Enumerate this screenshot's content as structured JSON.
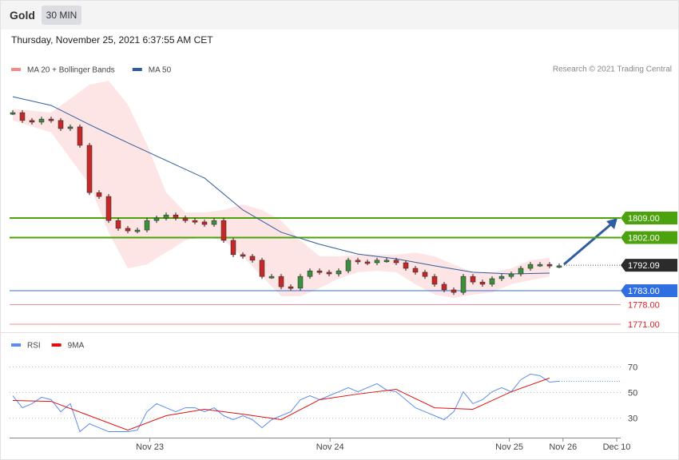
{
  "header": {
    "title": "Gold",
    "interval": "30 MIN",
    "timestamp": "Thursday, November 25, 2021 6:37:55 AM CET"
  },
  "credit": "Research © 2021 Trading Central",
  "chart_data": [
    {
      "type": "candlestick",
      "up_color": "#3c8f3c",
      "down_color": "#c62828",
      "closes": [
        1846.7,
        1843.9,
        1843.3,
        1844.4,
        1843.9,
        1841,
        1841.6,
        1835,
        1818.1,
        1816.7,
        1808.1,
        1805.3,
        1804.4,
        1804.7,
        1808.1,
        1809,
        1810.1,
        1809,
        1808.1,
        1807.6,
        1806.7,
        1808.1,
        1801,
        1795.9,
        1795.3,
        1793.9,
        1788.1,
        1788.1,
        1784.4,
        1783.9,
        1788.1,
        1790.1,
        1789.6,
        1789,
        1790.1,
        1793.9,
        1793.3,
        1793,
        1793.9,
        1793.9,
        1793,
        1791,
        1789.6,
        1788.1,
        1785.3,
        1783.3,
        1782.4,
        1788.1,
        1786.1,
        1785.3,
        1787.3,
        1788.1,
        1789,
        1791,
        1792.4,
        1792.4,
        1791.9,
        1791.9
      ],
      "series": [
        {
          "name": "MA 20 + Bollinger Bands",
          "color": "#f48a8a",
          "x": [
            0,
            4,
            8,
            10,
            12,
            14,
            16,
            18,
            20,
            22,
            24,
            26,
            28,
            30,
            32,
            34,
            36,
            38,
            40,
            42,
            44,
            46,
            48,
            50,
            52,
            54,
            56
          ],
          "upper": [
            1848.1,
            1846.7,
            1856.7,
            1858.1,
            1849.6,
            1835.3,
            1818.1,
            1811,
            1811,
            1811.9,
            1813.9,
            1811.9,
            1808.1,
            1801,
            1795.3,
            1795.3,
            1795.9,
            1795.9,
            1795.9,
            1796.7,
            1795.3,
            1792.4,
            1789.6,
            1789.6,
            1791,
            1793.9,
            1794.7
          ],
          "lower": [
            1843.9,
            1839.6,
            1821,
            1803.9,
            1791,
            1792.4,
            1796.7,
            1801,
            1802.4,
            1801,
            1795.3,
            1788.1,
            1781,
            1781,
            1783.9,
            1787.3,
            1789.6,
            1790.1,
            1789.6,
            1785.3,
            1781.6,
            1780.4,
            1781.6,
            1782.4,
            1785.3,
            1786.7,
            1788.1
          ]
        },
        {
          "name": "MA 50",
          "color": "#2e5c9e",
          "x": [
            0,
            4,
            8,
            12,
            16,
            20,
            24,
            28,
            32,
            36,
            40,
            44,
            48,
            52,
            56
          ],
          "values": [
            1852.4,
            1849.3,
            1842.4,
            1835.9,
            1829.6,
            1823.3,
            1811.9,
            1803.9,
            1799.6,
            1796.1,
            1794.4,
            1791.9,
            1789.6,
            1789,
            1789.3
          ]
        }
      ],
      "levels": [
        {
          "value": 1809,
          "label": "1809.00",
          "color": "#4ca20c",
          "boxed": true
        },
        {
          "value": 1802,
          "label": "1802.00",
          "color": "#4ca20c",
          "boxed": true
        },
        {
          "value": 1792.09,
          "label": "1792.09",
          "color": "#2b2b2b",
          "boxed": true
        },
        {
          "value": 1783,
          "label": "1783.00",
          "color": "#2f6fe0",
          "boxed": true
        },
        {
          "value": 1778,
          "label": "1778.00",
          "color": "#e02020",
          "boxed": false
        },
        {
          "value": 1771,
          "label": "1771.00",
          "color": "#e02020",
          "boxed": false
        }
      ],
      "xlim": [
        -0.3,
        63.4
      ],
      "ylim": [
        1770,
        1858
      ]
    },
    {
      "type": "line",
      "series": [
        {
          "name": "RSI",
          "color": "#5b8def",
          "values": [
            47.5,
            38.1,
            41.3,
            46.3,
            44.4,
            35,
            41.3,
            19.4,
            25.6,
            22.5,
            19.4,
            19.4,
            19.4,
            20.6,
            35,
            41.3,
            38.1,
            35,
            38.1,
            38.1,
            35,
            38.1,
            31.9,
            28.8,
            31.9,
            28.8,
            22.5,
            28.8,
            31.9,
            35,
            44.4,
            47.5,
            44.4,
            47.5,
            50.6,
            53.8,
            50.6,
            53.8,
            56.9,
            51.9,
            50.6,
            44.4,
            38.1,
            35,
            31.9,
            28.8,
            35,
            50.6,
            41.3,
            44.4,
            50.6,
            53.8,
            50.6,
            60,
            64.4,
            63.1,
            58.1,
            58.8
          ]
        },
        {
          "name": "9MA",
          "color": "#e01010",
          "x": [
            0,
            4,
            8,
            12,
            16,
            20,
            24,
            28,
            32,
            36,
            40,
            44,
            48,
            52,
            56
          ],
          "values": [
            43.8,
            43.1,
            31.9,
            20.6,
            31.9,
            36.9,
            33.1,
            28.8,
            44.4,
            48.8,
            52.5,
            38.1,
            36.9,
            50.6,
            61.3
          ]
        }
      ],
      "xlim": [
        -0.3,
        63.4
      ],
      "ylim": [
        16,
        94
      ],
      "yticks": [
        30,
        50,
        70
      ],
      "xticks": [
        {
          "value": 14.3,
          "label": "Nov 23"
        },
        {
          "value": 33.1,
          "label": "Nov 24"
        },
        {
          "value": 51.8,
          "label": "Nov 25"
        },
        {
          "value": 57.4,
          "label": "Nov 26"
        },
        {
          "value": 63,
          "label": "Dec 10"
        }
      ]
    }
  ]
}
